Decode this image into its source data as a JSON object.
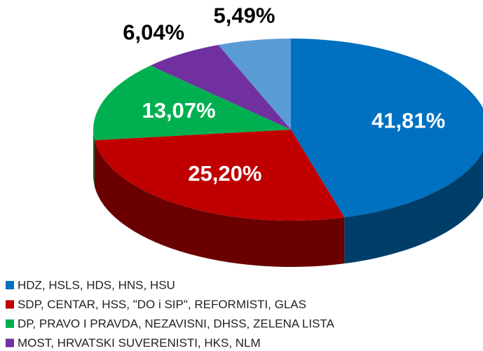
{
  "chart_data": {
    "type": "pie",
    "categories": [
      "HDZ, HSLS, HDS, HNS, HSU",
      "SDP, CENTAR, HSS, \"DO i SIP\", REFORMISTI, GLAS",
      "DP, PRAVO I PRAVDA, NEZAVISNI, DHSS, ZELENA LISTA",
      "MOST, HRVATSKI SUVERENISTI, HKS, NLM",
      null
    ],
    "values": [
      41.81,
      25.2,
      13.07,
      6.04,
      5.49
    ],
    "value_labels": [
      "41,81%",
      "25,20%",
      "13,07%",
      "6,04%",
      "5,49%"
    ],
    "colors": [
      "#0070c0",
      "#c00000",
      "#00b050",
      "#7030a0",
      "#5b9bd5"
    ],
    "legend": "bottom-left"
  }
}
